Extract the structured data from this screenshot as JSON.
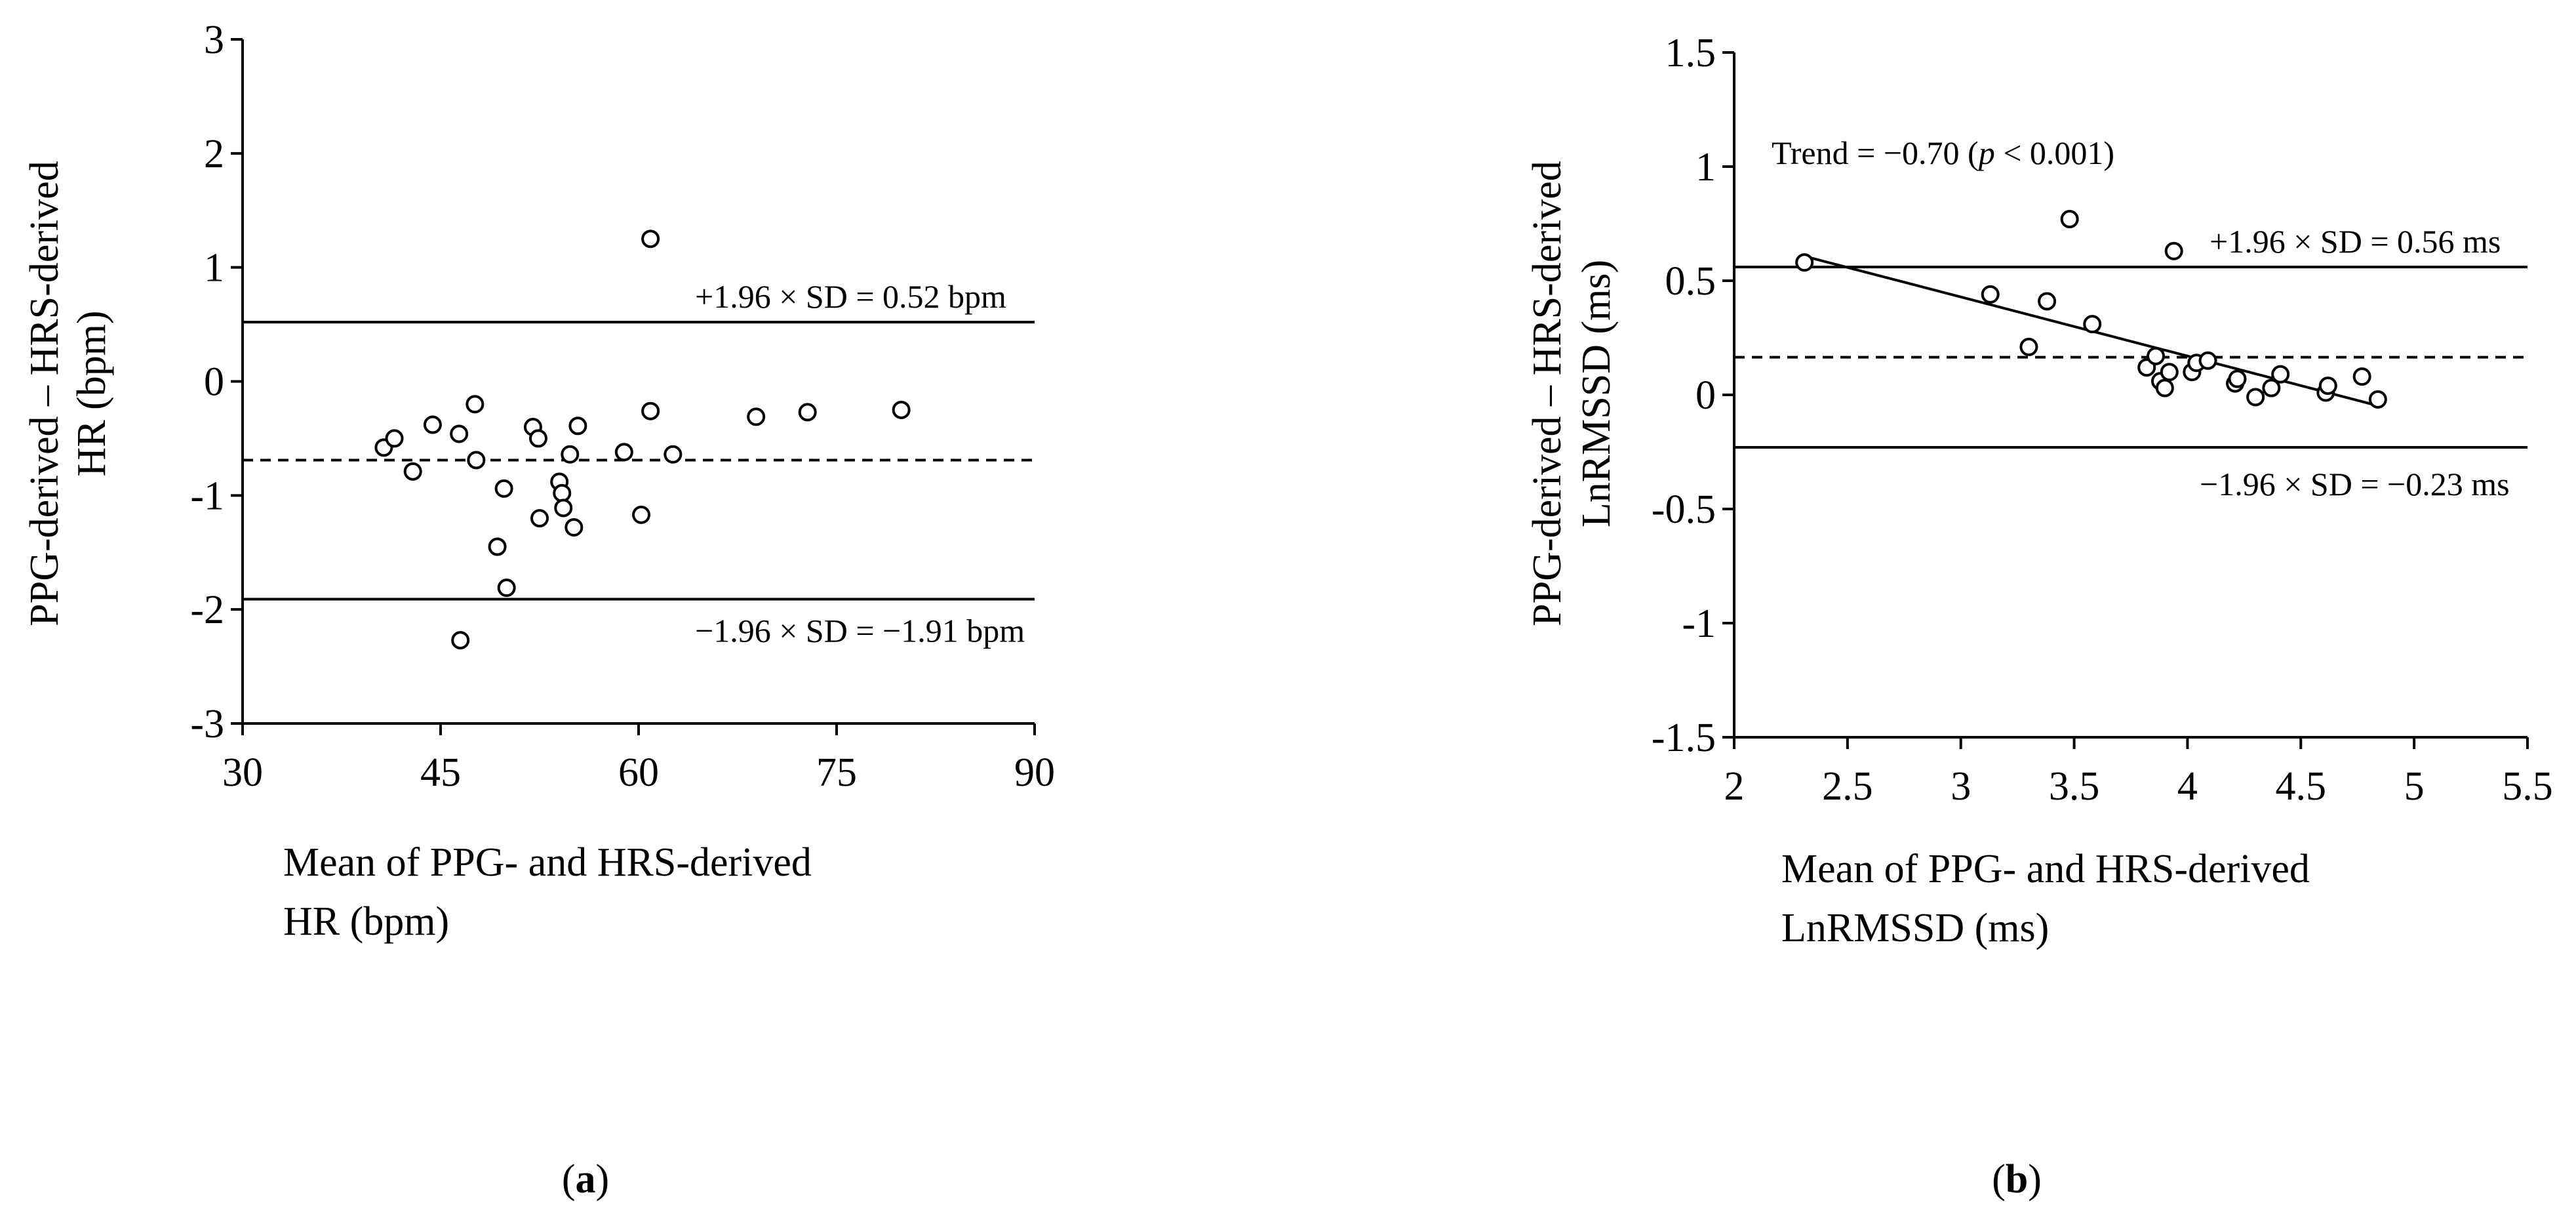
{
  "chart_data": [
    {
      "type": "scatter",
      "panel_label": "a",
      "xlabel": [
        "Mean of PPG- and HRS-derived",
        "HR (bpm)"
      ],
      "ylabel": [
        "PPG-derived – HRS-derived",
        "HR (bpm)"
      ],
      "xlim": [
        30,
        90
      ],
      "ylim": [
        -3,
        3
      ],
      "x_ticks": [
        "30",
        "45",
        "60",
        "75",
        "90"
      ],
      "x_tick_values": [
        30,
        45,
        60,
        75,
        90
      ],
      "y_ticks": [
        "3",
        "2",
        "1",
        "0",
        "-1",
        "-2",
        "-3"
      ],
      "y_tick_values": [
        3,
        2,
        1,
        0,
        -1,
        -2,
        -3
      ],
      "grid": false,
      "points": [
        {
          "x": 40.7,
          "y": -0.58
        },
        {
          "x": 41.5,
          "y": -0.5
        },
        {
          "x": 42.9,
          "y": -0.79
        },
        {
          "x": 44.4,
          "y": -0.38
        },
        {
          "x": 46.4,
          "y": -0.46
        },
        {
          "x": 46.5,
          "y": -2.27
        },
        {
          "x": 47.6,
          "y": -0.2
        },
        {
          "x": 47.7,
          "y": -0.69
        },
        {
          "x": 49.3,
          "y": -1.45
        },
        {
          "x": 49.8,
          "y": -0.94
        },
        {
          "x": 50.0,
          "y": -1.81
        },
        {
          "x": 52.0,
          "y": -0.4
        },
        {
          "x": 52.4,
          "y": -0.5
        },
        {
          "x": 52.5,
          "y": -1.2
        },
        {
          "x": 54.0,
          "y": -0.88
        },
        {
          "x": 54.2,
          "y": -0.98
        },
        {
          "x": 54.3,
          "y": -1.11
        },
        {
          "x": 54.8,
          "y": -0.64
        },
        {
          "x": 55.1,
          "y": -1.28
        },
        {
          "x": 55.4,
          "y": -0.39
        },
        {
          "x": 58.9,
          "y": -0.62
        },
        {
          "x": 60.2,
          "y": -1.17
        },
        {
          "x": 60.9,
          "y": 1.25
        },
        {
          "x": 60.9,
          "y": -0.26
        },
        {
          "x": 62.6,
          "y": -0.64
        },
        {
          "x": 68.9,
          "y": -0.31
        },
        {
          "x": 72.8,
          "y": -0.27
        },
        {
          "x": 79.9,
          "y": -0.25
        }
      ],
      "reference_lines": [
        {
          "y": 0.52,
          "style": "solid",
          "label": "+1.96 × SD = 0.52 bpm"
        },
        {
          "y": -0.69,
          "style": "dashed"
        },
        {
          "y": -1.91,
          "style": "solid",
          "label": "−1.96 × SD = −1.91 bpm"
        }
      ]
    },
    {
      "type": "scatter",
      "panel_label": "b",
      "xlabel": [
        "Mean of PPG- and HRS-derived",
        "LnRMSSD (ms)"
      ],
      "ylabel": [
        "PPG-derived – HRS-derived",
        "LnRMSSD (ms)"
      ],
      "xlim": [
        2,
        5.5
      ],
      "ylim": [
        -1.5,
        1.5
      ],
      "x_ticks": [
        "2",
        "2.5",
        "3",
        "3.5",
        "4",
        "4.5",
        "5",
        "5.5"
      ],
      "x_tick_values": [
        2,
        2.5,
        3,
        3.5,
        4,
        4.5,
        5,
        5.5
      ],
      "y_ticks": [
        "1.5",
        "1",
        "0.5",
        "0",
        "-0.5",
        "-1",
        "-1.5"
      ],
      "y_tick_values": [
        1.5,
        1,
        0.5,
        0,
        -0.5,
        -1,
        -1.5
      ],
      "grid": false,
      "points": [
        {
          "x": 2.31,
          "y": 0.58
        },
        {
          "x": 3.13,
          "y": 0.44
        },
        {
          "x": 3.3,
          "y": 0.21
        },
        {
          "x": 3.38,
          "y": 0.41
        },
        {
          "x": 3.48,
          "y": 0.77
        },
        {
          "x": 3.58,
          "y": 0.31
        },
        {
          "x": 3.82,
          "y": 0.12
        },
        {
          "x": 3.86,
          "y": 0.17
        },
        {
          "x": 3.88,
          "y": 0.06
        },
        {
          "x": 3.9,
          "y": 0.03
        },
        {
          "x": 3.92,
          "y": 0.1
        },
        {
          "x": 3.94,
          "y": 0.63
        },
        {
          "x": 4.02,
          "y": 0.1
        },
        {
          "x": 4.04,
          "y": 0.14
        },
        {
          "x": 4.09,
          "y": 0.15
        },
        {
          "x": 4.21,
          "y": 0.05
        },
        {
          "x": 4.22,
          "y": 0.07
        },
        {
          "x": 4.3,
          "y": -0.01
        },
        {
          "x": 4.37,
          "y": 0.03
        },
        {
          "x": 4.41,
          "y": 0.09
        },
        {
          "x": 4.61,
          "y": 0.01
        },
        {
          "x": 4.62,
          "y": 0.04
        },
        {
          "x": 4.77,
          "y": 0.08
        },
        {
          "x": 4.84,
          "y": -0.02
        }
      ],
      "reference_lines": [
        {
          "y": 0.56,
          "style": "solid",
          "label": "+1.96 × SD = 0.56 ms"
        },
        {
          "y": 0.165,
          "style": "dashed"
        },
        {
          "y": -0.23,
          "style": "solid",
          "label": "−1.96 × SD = −0.23 ms"
        }
      ],
      "trend_line": {
        "x1": 2.3,
        "y1": 0.61,
        "x2": 4.85,
        "y2": -0.05
      },
      "annotation": {
        "prefix": "Trend = −0.70 (",
        "italic": "p",
        "suffix": " < 0.001)"
      }
    }
  ]
}
